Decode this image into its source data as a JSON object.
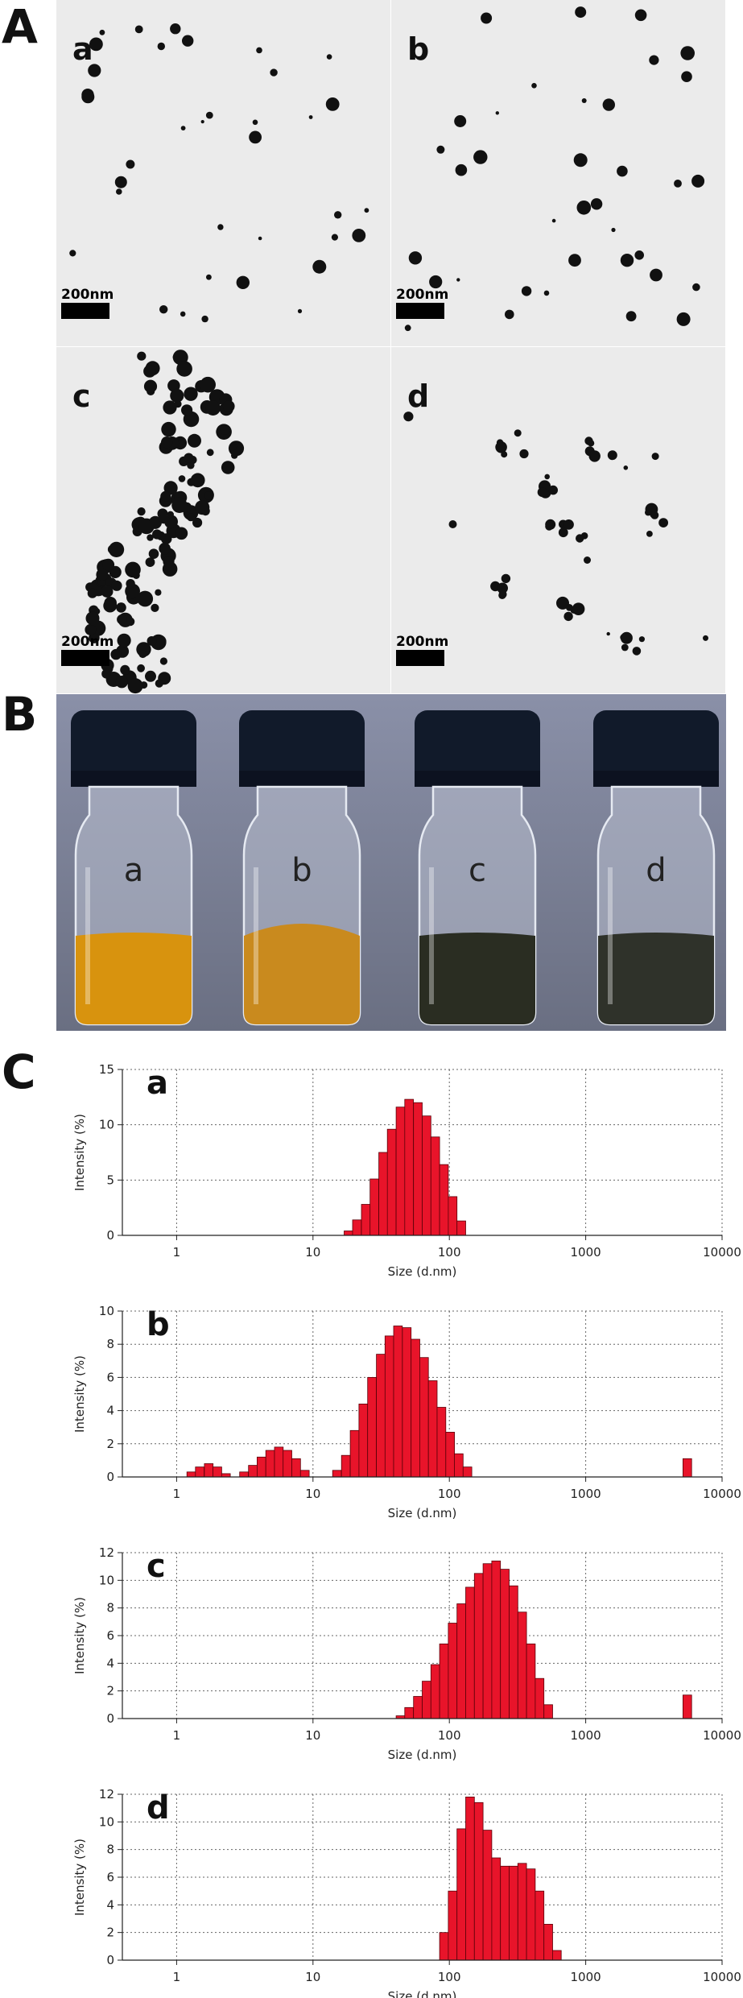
{
  "figure": {
    "section_labels": {
      "A": "A",
      "B": "B",
      "C": "C"
    },
    "tem_panels": [
      {
        "label": "a",
        "scale_bar": "200nm",
        "arrangement": "dispersed"
      },
      {
        "label": "b",
        "scale_bar": "200nm",
        "arrangement": "dispersed"
      },
      {
        "label": "c",
        "scale_bar": "200nm",
        "arrangement": "aggregated-chain"
      },
      {
        "label": "d",
        "scale_bar": "200nm",
        "arrangement": "small-clusters"
      }
    ],
    "vials": [
      {
        "label": "a",
        "liquid_color": "#d8930e"
      },
      {
        "label": "b",
        "liquid_color": "#c98a1e"
      },
      {
        "label": "c",
        "liquid_color": "#2a2d22"
      },
      {
        "label": "d",
        "liquid_color": "#2f322a"
      }
    ],
    "colors": {
      "bar_fill": "#e8142a",
      "cap": "#111a2a",
      "vial_background": "#7a7f95",
      "tem_background": "#ebebeb"
    }
  },
  "chart_data": [
    {
      "type": "bar",
      "panel_label": "a",
      "xlabel": "Size (d.nm)",
      "ylabel": "Intensity (%)",
      "xscale": "log",
      "xlim": [
        0.4,
        10000
      ],
      "ylim": [
        0,
        15
      ],
      "xticks": [
        "1",
        "10",
        "100",
        "1000",
        "10000"
      ],
      "yticks": [
        "0",
        "5",
        "10",
        "15"
      ],
      "grid": "dotted",
      "bars": [
        {
          "x": 18.2,
          "y": 0.4
        },
        {
          "x": 21.0,
          "y": 1.4
        },
        {
          "x": 24.4,
          "y": 2.8
        },
        {
          "x": 28.2,
          "y": 5.1
        },
        {
          "x": 32.7,
          "y": 7.5
        },
        {
          "x": 37.8,
          "y": 9.6
        },
        {
          "x": 43.8,
          "y": 11.6
        },
        {
          "x": 50.7,
          "y": 12.3
        },
        {
          "x": 58.8,
          "y": 12.0
        },
        {
          "x": 68.1,
          "y": 10.8
        },
        {
          "x": 78.8,
          "y": 8.9
        },
        {
          "x": 91.3,
          "y": 6.4
        },
        {
          "x": 105.7,
          "y": 3.5
        },
        {
          "x": 122.4,
          "y": 1.3
        }
      ]
    },
    {
      "type": "bar",
      "panel_label": "b",
      "xlabel": "Size (d.nm)",
      "ylabel": "Intensity (%)",
      "xscale": "log",
      "xlim": [
        0.4,
        10000
      ],
      "ylim": [
        0,
        10
      ],
      "xticks": [
        "1",
        "10",
        "100",
        "1000",
        "10000"
      ],
      "yticks": [
        "0",
        "2",
        "4",
        "6",
        "8",
        "10"
      ],
      "grid": "dotted",
      "bars": [
        {
          "x": 1.28,
          "y": 0.3
        },
        {
          "x": 1.48,
          "y": 0.6
        },
        {
          "x": 1.72,
          "y": 0.8
        },
        {
          "x": 1.99,
          "y": 0.6
        },
        {
          "x": 2.3,
          "y": 0.2
        },
        {
          "x": 3.12,
          "y": 0.3
        },
        {
          "x": 3.62,
          "y": 0.7
        },
        {
          "x": 4.19,
          "y": 1.2
        },
        {
          "x": 4.85,
          "y": 1.6
        },
        {
          "x": 5.62,
          "y": 1.8
        },
        {
          "x": 6.5,
          "y": 1.6
        },
        {
          "x": 7.53,
          "y": 1.1
        },
        {
          "x": 8.72,
          "y": 0.4
        },
        {
          "x": 15.0,
          "y": 0.4
        },
        {
          "x": 17.4,
          "y": 1.3
        },
        {
          "x": 20.2,
          "y": 2.8
        },
        {
          "x": 23.4,
          "y": 4.4
        },
        {
          "x": 27.1,
          "y": 6.0
        },
        {
          "x": 31.4,
          "y": 7.4
        },
        {
          "x": 36.3,
          "y": 8.5
        },
        {
          "x": 42.0,
          "y": 9.1
        },
        {
          "x": 48.7,
          "y": 9.0
        },
        {
          "x": 56.4,
          "y": 8.3
        },
        {
          "x": 65.3,
          "y": 7.2
        },
        {
          "x": 75.6,
          "y": 5.8
        },
        {
          "x": 87.5,
          "y": 4.2
        },
        {
          "x": 101.3,
          "y": 2.7
        },
        {
          "x": 117.3,
          "y": 1.4
        },
        {
          "x": 135.8,
          "y": 0.6
        },
        {
          "x": 5560,
          "y": 1.1
        }
      ]
    },
    {
      "type": "bar",
      "panel_label": "c",
      "xlabel": "Size (d.nm)",
      "ylabel": "Intensity (%)",
      "xscale": "log",
      "xlim": [
        0.4,
        10000
      ],
      "ylim": [
        0,
        12
      ],
      "xticks": [
        "1",
        "10",
        "100",
        "1000",
        "10000"
      ],
      "yticks": [
        "0",
        "2",
        "4",
        "6",
        "8",
        "10",
        "12"
      ],
      "grid": "dotted",
      "bars": [
        {
          "x": 43.8,
          "y": 0.2
        },
        {
          "x": 50.7,
          "y": 0.8
        },
        {
          "x": 58.8,
          "y": 1.6
        },
        {
          "x": 68.1,
          "y": 2.7
        },
        {
          "x": 78.8,
          "y": 3.9
        },
        {
          "x": 91.3,
          "y": 5.4
        },
        {
          "x": 105.7,
          "y": 6.9
        },
        {
          "x": 122.4,
          "y": 8.3
        },
        {
          "x": 141.8,
          "y": 9.5
        },
        {
          "x": 164.2,
          "y": 10.5
        },
        {
          "x": 190.1,
          "y": 11.2
        },
        {
          "x": 220.2,
          "y": 11.4
        },
        {
          "x": 255.0,
          "y": 10.8
        },
        {
          "x": 295.3,
          "y": 9.6
        },
        {
          "x": 342.0,
          "y": 7.7
        },
        {
          "x": 396.1,
          "y": 5.4
        },
        {
          "x": 458.7,
          "y": 2.9
        },
        {
          "x": 531.2,
          "y": 1.0
        },
        {
          "x": 5560,
          "y": 1.7
        }
      ]
    },
    {
      "type": "bar",
      "panel_label": "d",
      "xlabel": "Size (d.nm)",
      "ylabel": "Intensity (%)",
      "xscale": "log",
      "xlim": [
        0.4,
        10000
      ],
      "ylim": [
        0,
        12
      ],
      "xticks": [
        "1",
        "10",
        "100",
        "1000",
        "10000"
      ],
      "yticks": [
        "0",
        "2",
        "4",
        "6",
        "8",
        "10",
        "12"
      ],
      "grid": "dotted",
      "bars": [
        {
          "x": 91.3,
          "y": 2.0
        },
        {
          "x": 105.7,
          "y": 5.0
        },
        {
          "x": 122.4,
          "y": 9.5
        },
        {
          "x": 141.8,
          "y": 11.8
        },
        {
          "x": 164.2,
          "y": 11.4
        },
        {
          "x": 190.1,
          "y": 9.4
        },
        {
          "x": 220.2,
          "y": 7.4
        },
        {
          "x": 255.0,
          "y": 6.8
        },
        {
          "x": 295.3,
          "y": 6.8
        },
        {
          "x": 342.0,
          "y": 7.0
        },
        {
          "x": 396.1,
          "y": 6.6
        },
        {
          "x": 458.7,
          "y": 5.0
        },
        {
          "x": 531.2,
          "y": 2.6
        },
        {
          "x": 615.1,
          "y": 0.7
        }
      ]
    }
  ]
}
